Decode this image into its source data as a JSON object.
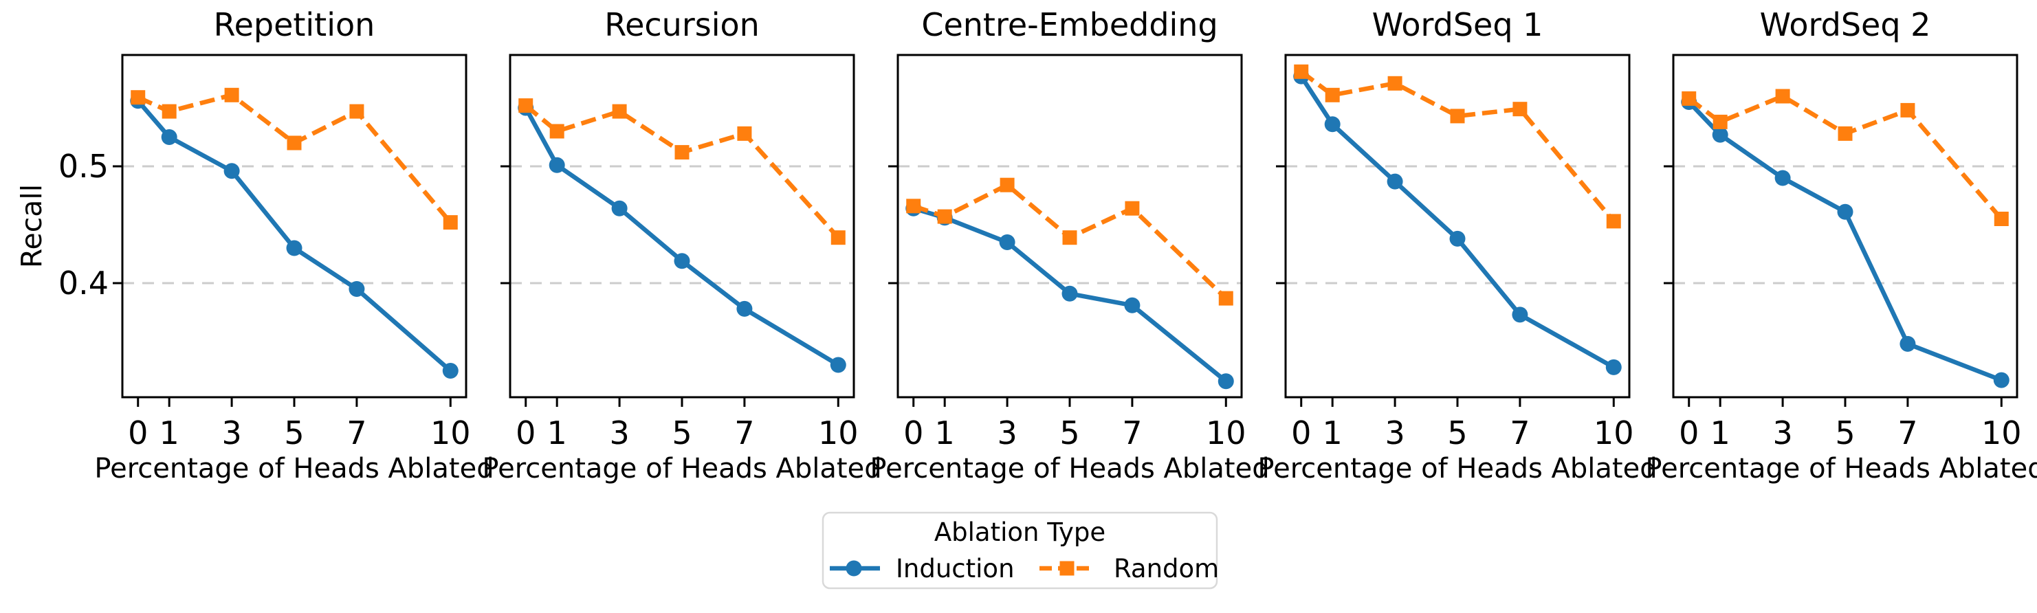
{
  "figure": {
    "ylabel": "Recall",
    "xlabel": "Percentage of Heads Ablated",
    "colors": {
      "induction": "#1f77b4",
      "random": "#ff7f0e",
      "grid": "#cccccc",
      "spine": "#000000",
      "legend_border": "#d9d9d9"
    },
    "legend": {
      "title": "Ablation Type",
      "entries": [
        {
          "label": "Induction",
          "color": "#1f77b4",
          "marker": "circle",
          "linestyle": "solid"
        },
        {
          "label": "Random",
          "color": "#ff7f0e",
          "marker": "square",
          "linestyle": "dashed"
        }
      ]
    }
  },
  "chart_data": [
    {
      "type": "line",
      "title": "Repetition",
      "xlabel": "Percentage of Heads Ablated",
      "ylabel": "Recall",
      "x": [
        0,
        1,
        3,
        5,
        7,
        10
      ],
      "xticks": [
        0,
        1,
        3,
        5,
        7,
        10
      ],
      "yticks": [
        0.5,
        0.4
      ],
      "xlim": [
        -0.5,
        10.5
      ],
      "ylim": [
        0.302,
        0.596
      ],
      "grid": true,
      "legend_position": "figure-bottom-center",
      "series": [
        {
          "name": "Induction",
          "color": "#1f77b4",
          "marker": "circle",
          "linestyle": "solid",
          "values": [
            0.556,
            0.525,
            0.496,
            0.43,
            0.395,
            0.325
          ]
        },
        {
          "name": "Random",
          "color": "#ff7f0e",
          "marker": "square",
          "linestyle": "dashed",
          "values": [
            0.559,
            0.547,
            0.561,
            0.52,
            0.547,
            0.452
          ]
        }
      ]
    },
    {
      "type": "line",
      "title": "Recursion",
      "xlabel": "Percentage of Heads Ablated",
      "ylabel": "Recall",
      "x": [
        0,
        1,
        3,
        5,
        7,
        10
      ],
      "xticks": [
        0,
        1,
        3,
        5,
        7,
        10
      ],
      "yticks": [
        0.5,
        0.4
      ],
      "xlim": [
        -0.5,
        10.5
      ],
      "ylim": [
        0.302,
        0.596
      ],
      "grid": true,
      "series": [
        {
          "name": "Induction",
          "color": "#1f77b4",
          "marker": "circle",
          "linestyle": "solid",
          "values": [
            0.55,
            0.501,
            0.464,
            0.419,
            0.378,
            0.33
          ]
        },
        {
          "name": "Random",
          "color": "#ff7f0e",
          "marker": "square",
          "linestyle": "dashed",
          "values": [
            0.552,
            0.53,
            0.547,
            0.512,
            0.528,
            0.439
          ]
        }
      ]
    },
    {
      "type": "line",
      "title": "Centre-Embedding",
      "xlabel": "Percentage of Heads Ablated",
      "ylabel": "Recall",
      "x": [
        0,
        1,
        3,
        5,
        7,
        10
      ],
      "xticks": [
        0,
        1,
        3,
        5,
        7,
        10
      ],
      "yticks": [
        0.5,
        0.4
      ],
      "xlim": [
        -0.5,
        10.5
      ],
      "ylim": [
        0.302,
        0.596
      ],
      "grid": true,
      "series": [
        {
          "name": "Induction",
          "color": "#1f77b4",
          "marker": "circle",
          "linestyle": "solid",
          "values": [
            0.464,
            0.456,
            0.435,
            0.391,
            0.381,
            0.316
          ]
        },
        {
          "name": "Random",
          "color": "#ff7f0e",
          "marker": "square",
          "linestyle": "dashed",
          "values": [
            0.466,
            0.457,
            0.484,
            0.439,
            0.464,
            0.387
          ]
        }
      ]
    },
    {
      "type": "line",
      "title": "WordSeq 1",
      "xlabel": "Percentage of Heads Ablated",
      "ylabel": "Recall",
      "x": [
        0,
        1,
        3,
        5,
        7,
        10
      ],
      "xticks": [
        0,
        1,
        3,
        5,
        7,
        10
      ],
      "yticks": [
        0.5,
        0.4
      ],
      "xlim": [
        -0.5,
        10.5
      ],
      "ylim": [
        0.302,
        0.596
      ],
      "grid": true,
      "series": [
        {
          "name": "Induction",
          "color": "#1f77b4",
          "marker": "circle",
          "linestyle": "solid",
          "values": [
            0.577,
            0.536,
            0.487,
            0.438,
            0.373,
            0.328
          ]
        },
        {
          "name": "Random",
          "color": "#ff7f0e",
          "marker": "square",
          "linestyle": "dashed",
          "values": [
            0.581,
            0.561,
            0.571,
            0.543,
            0.549,
            0.453
          ]
        }
      ]
    },
    {
      "type": "line",
      "title": "WordSeq 2",
      "xlabel": "Percentage of Heads Ablated",
      "ylabel": "Recall",
      "x": [
        0,
        1,
        3,
        5,
        7,
        10
      ],
      "xticks": [
        0,
        1,
        3,
        5,
        7,
        10
      ],
      "yticks": [
        0.5,
        0.4
      ],
      "xlim": [
        -0.5,
        10.5
      ],
      "ylim": [
        0.302,
        0.596
      ],
      "grid": true,
      "series": [
        {
          "name": "Induction",
          "color": "#1f77b4",
          "marker": "circle",
          "linestyle": "solid",
          "values": [
            0.555,
            0.527,
            0.49,
            0.461,
            0.348,
            0.317
          ]
        },
        {
          "name": "Random",
          "color": "#ff7f0e",
          "marker": "square",
          "linestyle": "dashed",
          "values": [
            0.558,
            0.538,
            0.56,
            0.528,
            0.548,
            0.455
          ]
        }
      ]
    }
  ]
}
